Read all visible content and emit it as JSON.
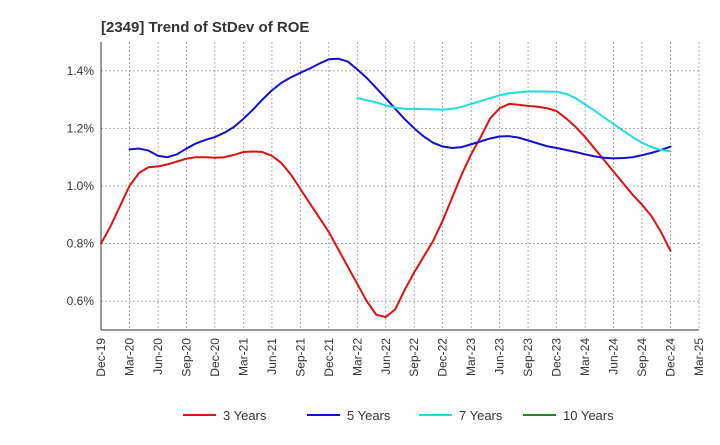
{
  "chart_data": {
    "type": "line",
    "title": "[2349]  Trend of StDev of ROE",
    "xlabel": "",
    "ylabel": "",
    "x_ticks": [
      "Dec-19",
      "Mar-20",
      "Jun-20",
      "Sep-20",
      "Dec-20",
      "Mar-21",
      "Jun-21",
      "Sep-21",
      "Dec-21",
      "Mar-22",
      "Jun-22",
      "Sep-22",
      "Dec-22",
      "Mar-23",
      "Jun-23",
      "Sep-23",
      "Dec-23",
      "Mar-24",
      "Jun-24",
      "Sep-24",
      "Dec-24",
      "Mar-25"
    ],
    "y_ticks": [
      "0.6%",
      "0.8%",
      "1.0%",
      "1.2%",
      "1.4%"
    ],
    "y_tick_values": [
      0.6,
      0.8,
      1.0,
      1.2,
      1.4
    ],
    "ylim": [
      0.5,
      1.5
    ],
    "grid": true,
    "legend_position": "bottom",
    "series": [
      {
        "name": "3 Years",
        "color": "#dd1111",
        "x": [
          "2019-12",
          "2020-01",
          "2020-02",
          "2020-03",
          "2020-04",
          "2020-05",
          "2020-06",
          "2020-07",
          "2020-08",
          "2020-09",
          "2020-10",
          "2020-11",
          "2020-12",
          "2021-01",
          "2021-02",
          "2021-03",
          "2021-04",
          "2021-05",
          "2021-06",
          "2021-07",
          "2021-08",
          "2021-09",
          "2021-10",
          "2021-11",
          "2021-12",
          "2022-01",
          "2022-02",
          "2022-03",
          "2022-04",
          "2022-05",
          "2022-06",
          "2022-07",
          "2022-08",
          "2022-09",
          "2022-10",
          "2022-11",
          "2022-12",
          "2023-01",
          "2023-02",
          "2023-03",
          "2023-04",
          "2023-05",
          "2023-06",
          "2023-07",
          "2023-08",
          "2023-09",
          "2023-10",
          "2023-11",
          "2023-12",
          "2024-01",
          "2024-02",
          "2024-03",
          "2024-04",
          "2024-05",
          "2024-06",
          "2024-07",
          "2024-08",
          "2024-09",
          "2024-10",
          "2024-11",
          "2024-12"
        ],
        "values": [
          0.8,
          0.86,
          0.93,
          1.0,
          1.045,
          1.065,
          1.068,
          1.075,
          1.085,
          1.095,
          1.1,
          1.1,
          1.098,
          1.1,
          1.108,
          1.118,
          1.12,
          1.118,
          1.105,
          1.08,
          1.04,
          0.99,
          0.94,
          0.89,
          0.84,
          0.78,
          0.72,
          0.66,
          0.6,
          0.553,
          0.545,
          0.572,
          0.64,
          0.7,
          0.755,
          0.81,
          0.88,
          0.96,
          1.04,
          1.11,
          1.17,
          1.235,
          1.27,
          1.285,
          1.282,
          1.278,
          1.275,
          1.27,
          1.26,
          1.235,
          1.205,
          1.17,
          1.13,
          1.09,
          1.05,
          1.01,
          0.97,
          0.935,
          0.895,
          0.84,
          0.775
        ]
      },
      {
        "name": "5 Years",
        "color": "#1111cc",
        "x": [
          "2020-03",
          "2020-04",
          "2020-05",
          "2020-06",
          "2020-07",
          "2020-08",
          "2020-09",
          "2020-10",
          "2020-11",
          "2020-12",
          "2021-01",
          "2021-02",
          "2021-03",
          "2021-04",
          "2021-05",
          "2021-06",
          "2021-07",
          "2021-08",
          "2021-09",
          "2021-10",
          "2021-11",
          "2021-12",
          "2022-01",
          "2022-02",
          "2022-03",
          "2022-04",
          "2022-05",
          "2022-06",
          "2022-07",
          "2022-08",
          "2022-09",
          "2022-10",
          "2022-11",
          "2022-12",
          "2023-01",
          "2023-02",
          "2023-03",
          "2023-04",
          "2023-05",
          "2023-06",
          "2023-07",
          "2023-08",
          "2023-09",
          "2023-10",
          "2023-11",
          "2023-12",
          "2024-01",
          "2024-02",
          "2024-03",
          "2024-04",
          "2024-05",
          "2024-06",
          "2024-07",
          "2024-08",
          "2024-09",
          "2024-10",
          "2024-11",
          "2024-12"
        ],
        "values": [
          1.127,
          1.13,
          1.123,
          1.105,
          1.1,
          1.11,
          1.13,
          1.148,
          1.16,
          1.17,
          1.185,
          1.205,
          1.233,
          1.265,
          1.3,
          1.332,
          1.358,
          1.377,
          1.393,
          1.408,
          1.425,
          1.44,
          1.442,
          1.432,
          1.405,
          1.375,
          1.34,
          1.305,
          1.268,
          1.232,
          1.2,
          1.172,
          1.15,
          1.137,
          1.132,
          1.135,
          1.145,
          1.155,
          1.165,
          1.172,
          1.173,
          1.168,
          1.158,
          1.148,
          1.138,
          1.132,
          1.125,
          1.118,
          1.11,
          1.103,
          1.098,
          1.096,
          1.097,
          1.1,
          1.107,
          1.115,
          1.125,
          1.137
        ]
      },
      {
        "name": "7 Years",
        "color": "#22dddd",
        "x": [
          "2022-03",
          "2022-04",
          "2022-05",
          "2022-06",
          "2022-07",
          "2022-08",
          "2022-09",
          "2022-10",
          "2022-11",
          "2022-12",
          "2023-01",
          "2023-02",
          "2023-03",
          "2023-04",
          "2023-05",
          "2023-06",
          "2023-07",
          "2023-08",
          "2023-09",
          "2023-10",
          "2023-11",
          "2023-12",
          "2024-01",
          "2024-02",
          "2024-03",
          "2024-04",
          "2024-05",
          "2024-06",
          "2024-07",
          "2024-08",
          "2024-09",
          "2024-10",
          "2024-11",
          "2024-12"
        ],
        "values": [
          1.305,
          1.298,
          1.29,
          1.28,
          1.272,
          1.268,
          1.268,
          1.267,
          1.266,
          1.265,
          1.268,
          1.275,
          1.285,
          1.295,
          1.305,
          1.315,
          1.322,
          1.325,
          1.328,
          1.328,
          1.328,
          1.327,
          1.32,
          1.305,
          1.283,
          1.262,
          1.238,
          1.215,
          1.192,
          1.17,
          1.15,
          1.135,
          1.125,
          1.12
        ]
      },
      {
        "name": "10 Years",
        "color": "#228822",
        "x": [],
        "values": []
      }
    ]
  }
}
